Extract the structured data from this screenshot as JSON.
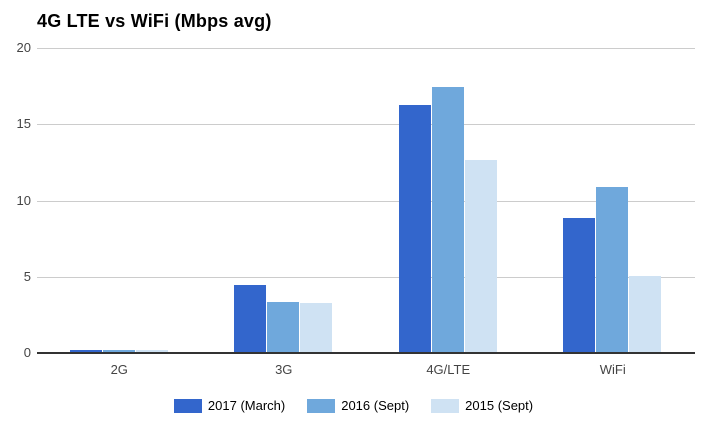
{
  "chart_data": {
    "type": "bar",
    "title": "4G LTE vs WiFi (Mbps avg)",
    "categories": [
      "2G",
      "3G",
      "4G/LTE",
      "WiFi"
    ],
    "series": [
      {
        "name": "2017 (March)",
        "color": "#3366CC",
        "values": [
          0.1,
          4.4,
          16.2,
          8.8
        ]
      },
      {
        "name": "2016 (Sept)",
        "color": "#6FA8DC",
        "values": [
          0.1,
          3.3,
          17.4,
          10.8
        ]
      },
      {
        "name": "2015 (Sept)",
        "color": "#CFE2F3",
        "values": [
          0.1,
          3.2,
          12.6,
          5.0
        ]
      }
    ],
    "xlabel": "",
    "ylabel": "",
    "ylim": [
      0,
      20
    ],
    "yticks": [
      0,
      5,
      10,
      15,
      20
    ],
    "grid": true,
    "legend_position": "bottom",
    "styles": {
      "background": "#ffffff",
      "gridline_color": "#cccccc",
      "baseline_color": "#333333",
      "axis_text_color": "#444444",
      "legend_text_color": "#000000",
      "title_color": "#000000"
    }
  }
}
